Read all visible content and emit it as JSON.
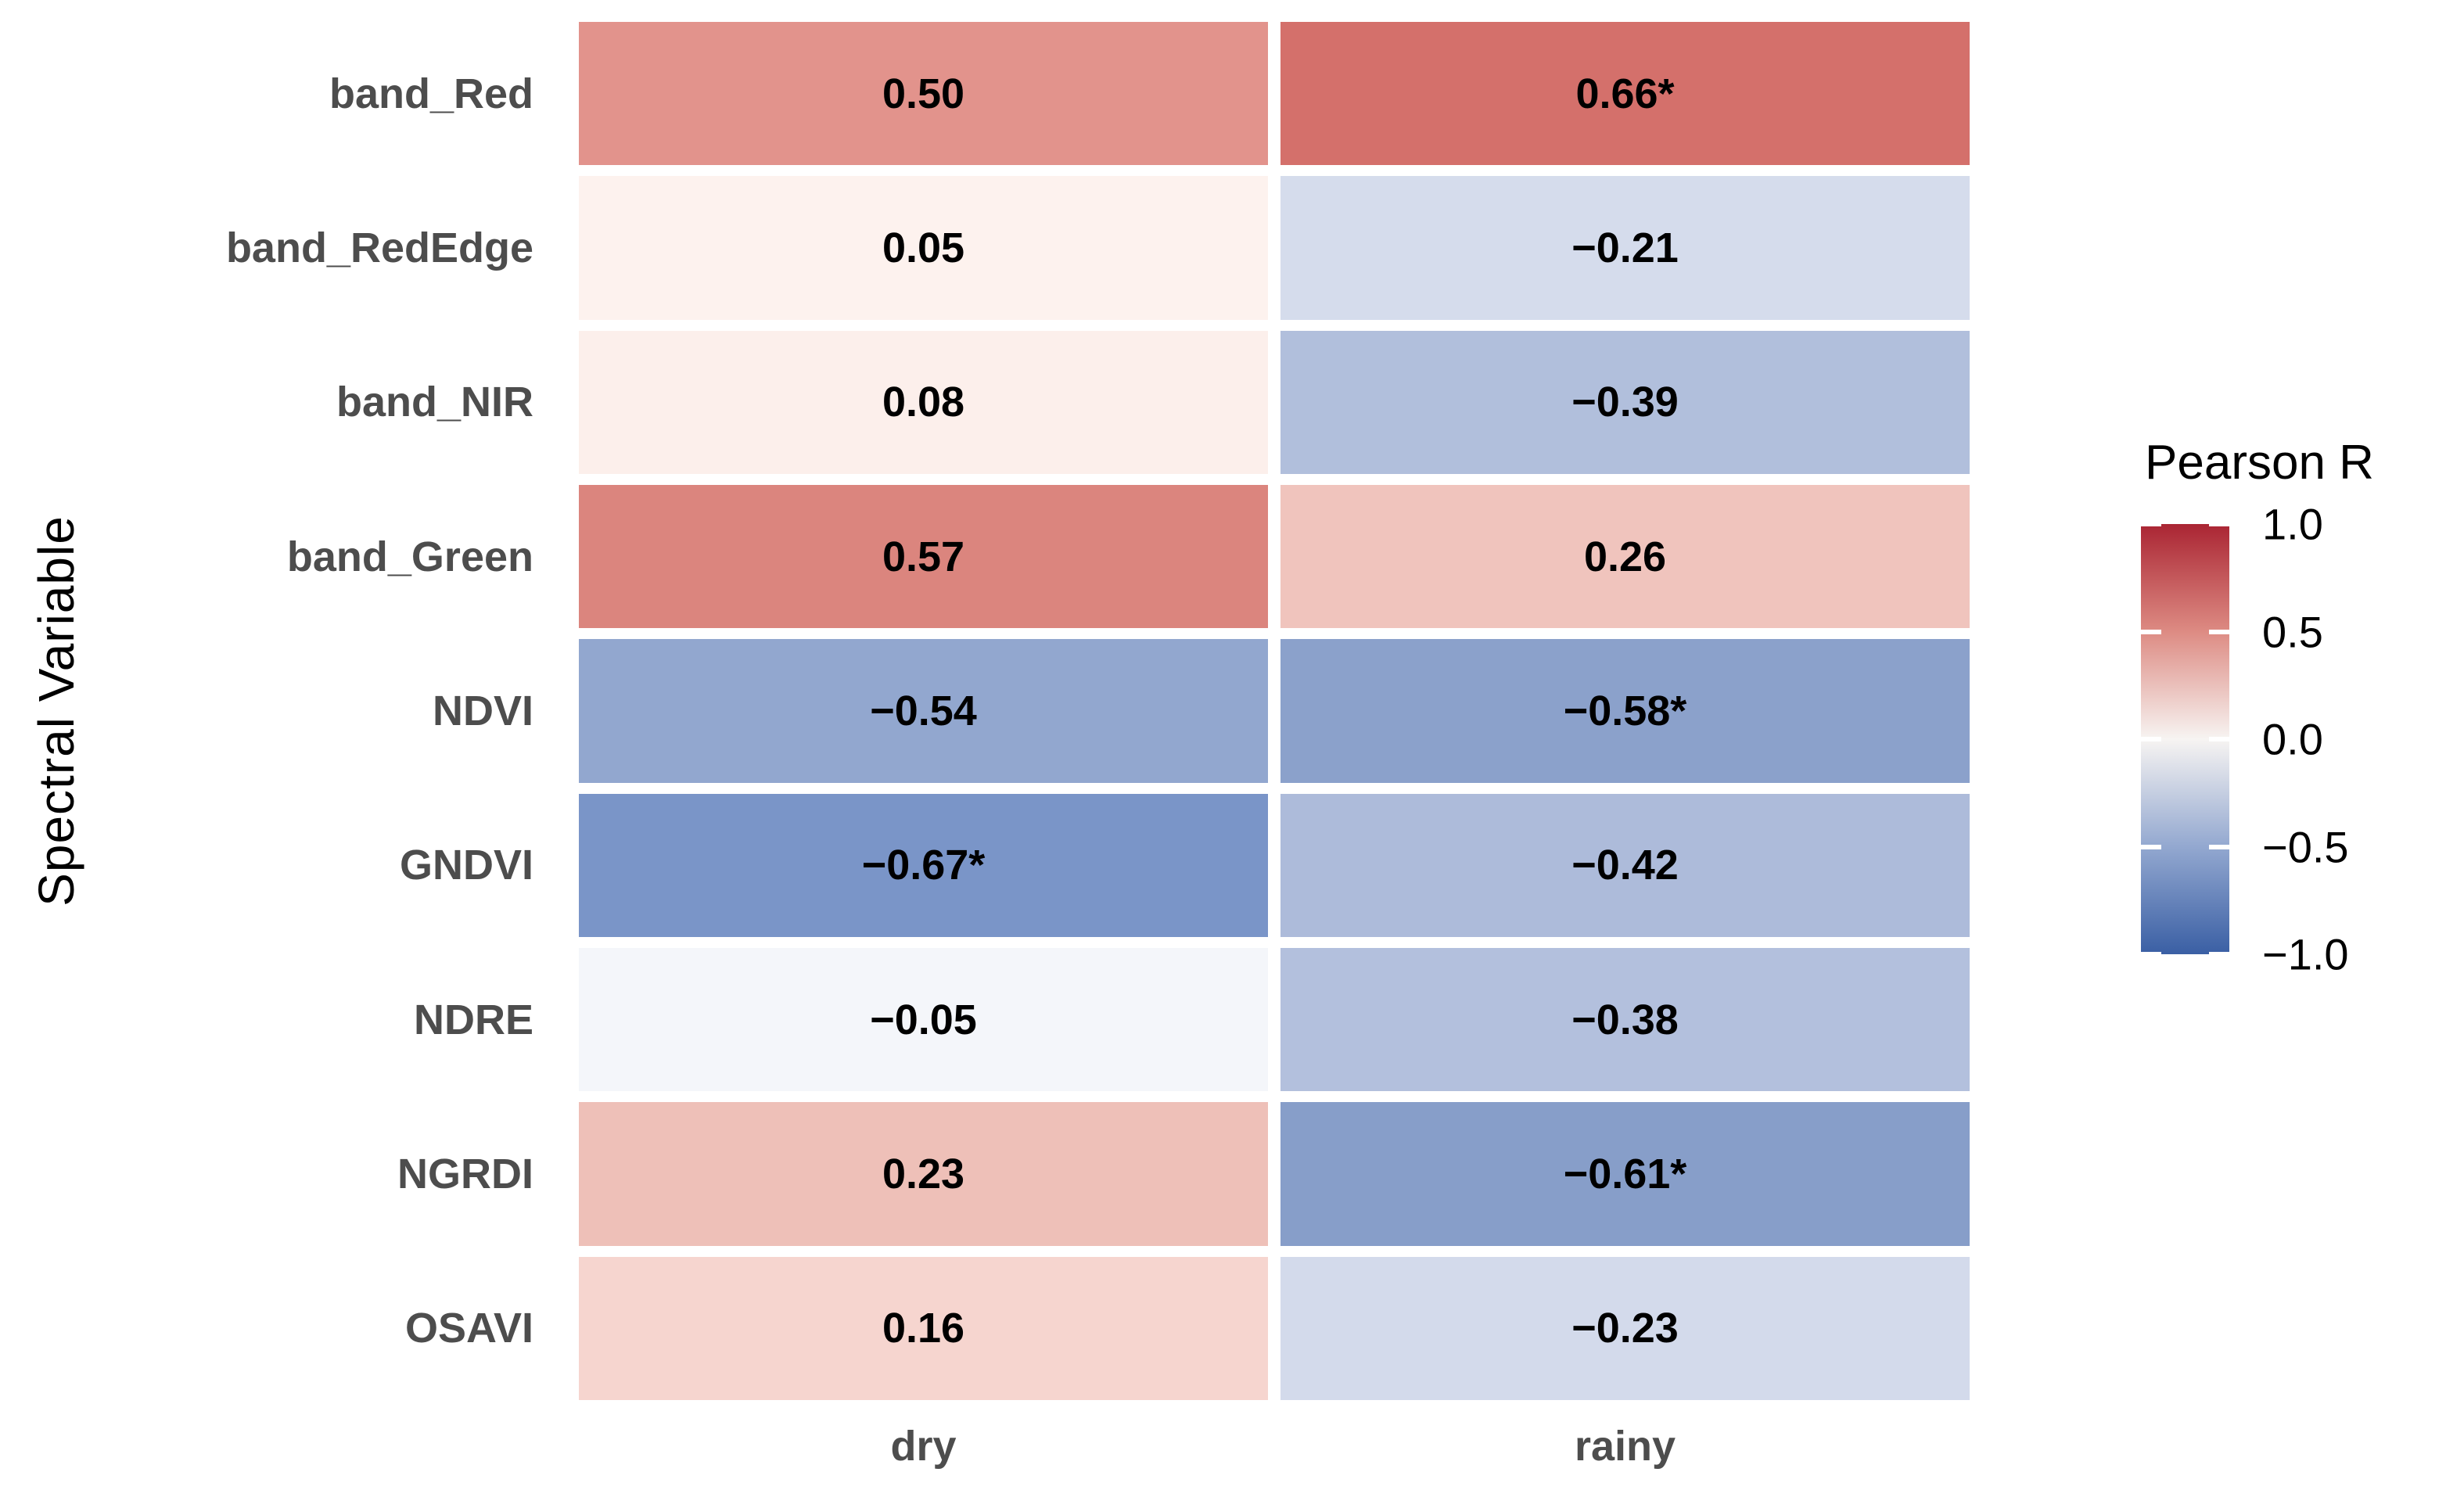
{
  "chart_data": {
    "type": "heatmap",
    "title": "",
    "xlabel": "",
    "ylabel": "Spectral Variable",
    "x": [
      "dry",
      "rainy"
    ],
    "y": [
      "band_Red",
      "band_RedEdge",
      "band_NIR",
      "band_Green",
      "NDVI",
      "GNDVI",
      "NDRE",
      "NGRDI",
      "OSAVI"
    ],
    "values": [
      [
        0.5,
        0.66
      ],
      [
        0.05,
        -0.21
      ],
      [
        0.08,
        -0.39
      ],
      [
        0.57,
        0.26
      ],
      [
        -0.54,
        -0.58
      ],
      [
        -0.67,
        -0.42
      ],
      [
        -0.05,
        -0.38
      ],
      [
        0.23,
        -0.61
      ],
      [
        0.16,
        -0.23
      ]
    ],
    "labels": [
      [
        "0.50",
        "0.66*"
      ],
      [
        "0.05",
        "−0.21"
      ],
      [
        "0.08",
        "−0.39"
      ],
      [
        "0.57",
        "0.26"
      ],
      [
        "−0.54",
        "−0.58*"
      ],
      [
        "−0.67*",
        "−0.42"
      ],
      [
        "−0.05",
        "−0.38"
      ],
      [
        "0.23",
        "−0.61*"
      ],
      [
        "0.16",
        "−0.23"
      ]
    ],
    "significant": [
      [
        false,
        true
      ],
      [
        false,
        false
      ],
      [
        false,
        false
      ],
      [
        false,
        false
      ],
      [
        false,
        true
      ],
      [
        true,
        false
      ],
      [
        false,
        false
      ],
      [
        false,
        true
      ],
      [
        false,
        false
      ]
    ],
    "cell_colors": [
      [
        "#e2938c",
        "#d4706b"
      ],
      [
        "#fdf2ee",
        "#d5dcec"
      ],
      [
        "#fcefeb",
        "#b1bfdc"
      ],
      [
        "#db857e",
        "#f0c4bd"
      ],
      [
        "#92a7cf",
        "#8ba1cb"
      ],
      [
        "#7a95c8",
        "#adbbda"
      ],
      [
        "#f4f6fa",
        "#b3c0dd"
      ],
      [
        "#eec0b8",
        "#879ec9"
      ],
      [
        "#f6d5cf",
        "#d3daeb"
      ]
    ],
    "colorscale": {
      "high_color": "#aa2533",
      "mid_color": "#f7f4f2",
      "low_color": "#3a5fa4",
      "domain": [
        -1.0,
        1.0
      ]
    },
    "legend": {
      "title": "Pearson R",
      "ticks": [
        "1.0",
        "0.5",
        "0.0",
        "−0.5",
        "−1.0"
      ],
      "tick_values": [
        1.0,
        0.5,
        0.0,
        -0.5,
        -1.0
      ]
    },
    "grid": false,
    "legend_position": "right"
  }
}
